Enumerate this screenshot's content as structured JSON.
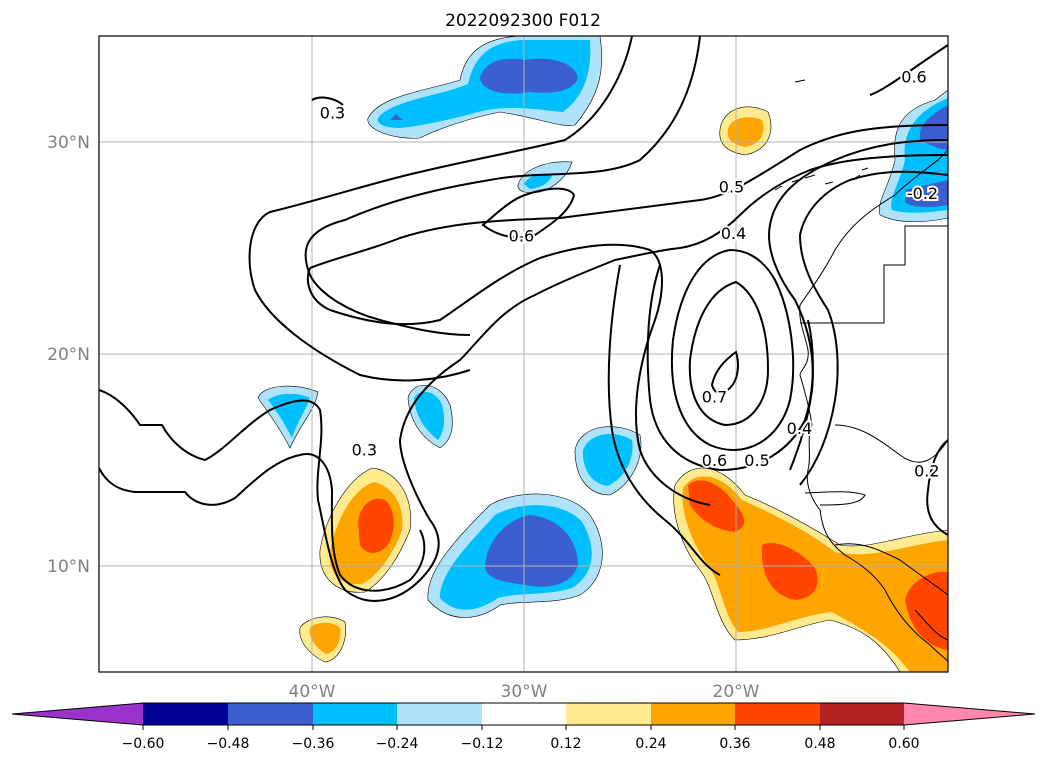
{
  "title": "2022092300 F012",
  "map": {
    "extent": {
      "lon_min": -50,
      "lon_max": -10,
      "lat_min": 5,
      "lat_max": 35
    },
    "lat_labels": [
      {
        "lat": 30,
        "text": "30°N"
      },
      {
        "lat": 20,
        "text": "20°N"
      },
      {
        "lat": 10,
        "text": "10°N"
      }
    ],
    "lon_labels": [
      {
        "lon": -40,
        "text": "40°W"
      },
      {
        "lon": -30,
        "text": "30°W"
      },
      {
        "lon": -20,
        "text": "20°W"
      }
    ],
    "contour_labels": [
      {
        "text": "0.3",
        "lon": -39,
        "lat": 31.4
      },
      {
        "text": "0.6",
        "lon": -11.6,
        "lat": 33.1
      },
      {
        "text": "0.5",
        "lon": -20.2,
        "lat": 27.9
      },
      {
        "text": "0.4",
        "lon": -20.1,
        "lat": 25.7
      },
      {
        "text": "0.6",
        "lon": -30.1,
        "lat": 25.6
      },
      {
        "text": "-0.2",
        "lon": -11.2,
        "lat": 27.6
      },
      {
        "text": "0.7",
        "lon": -21.0,
        "lat": 18.0
      },
      {
        "text": "0.6",
        "lon": -21.0,
        "lat": 15.0
      },
      {
        "text": "0.5",
        "lon": -19.0,
        "lat": 15.0
      },
      {
        "text": "0.4",
        "lon": -17.0,
        "lat": 16.5
      },
      {
        "text": "0.3",
        "lon": -37.5,
        "lat": 15.5
      },
      {
        "text": "0.2",
        "lon": -11.0,
        "lat": 14.5
      }
    ]
  },
  "colorbar": {
    "colors": [
      "#9933cc",
      "#000099",
      "#3b5fce",
      "#00bfff",
      "#aee3fb",
      "#ffffff",
      "#ffea8f",
      "#ffa500",
      "#ff4500",
      "#b22222",
      "#ff88aa"
    ],
    "ticks": [
      "−0.60",
      "−0.48",
      "−0.36",
      "−0.24",
      "−0.12",
      "0.12",
      "0.24",
      "0.36",
      "0.48",
      "0.60"
    ]
  }
}
